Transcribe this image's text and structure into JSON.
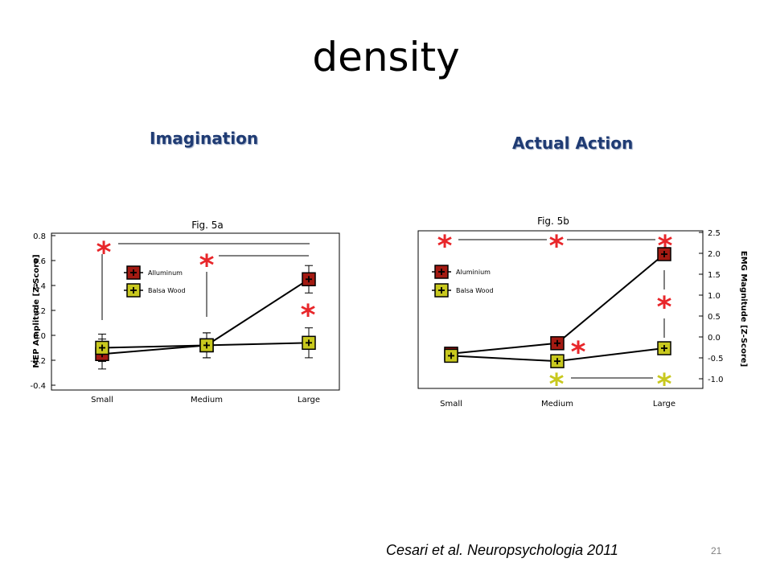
{
  "slide": {
    "title": "density",
    "left_heading": "Imagination",
    "right_heading": "Actual Action",
    "citation": "Cesari et al. Neuropsychologia 2011",
    "page_number": "21"
  },
  "colors": {
    "aluminum": "#a31a12",
    "balsa": "#c8c81e",
    "significance_red": "#e8262a",
    "significance_yellow": "#c8c81e",
    "heading": "#1f3b73"
  },
  "chart_data": [
    {
      "type": "line",
      "title": "Fig. 5a",
      "xlabel": "",
      "ylabel": "MEP Amplitude [Z-Score]",
      "categories": [
        "Small",
        "Medium",
        "Large"
      ],
      "ylim": [
        -0.4,
        0.8
      ],
      "yticks": [
        "0.8",
        "0.6",
        "0.4",
        "0.2",
        "0.0",
        "-0.2",
        "-0.4"
      ],
      "ytick_values": [
        0.8,
        0.6,
        0.4,
        0.2,
        0.0,
        -0.2,
        -0.4
      ],
      "legend_position": "top-left",
      "series": [
        {
          "name": "Alluminum",
          "values": [
            -0.15,
            -0.08,
            0.45
          ],
          "errors": [
            0.12,
            0.1,
            0.11
          ],
          "color": "#a31a12"
        },
        {
          "name": "Balsa Wood",
          "values": [
            -0.1,
            -0.08,
            -0.06
          ],
          "errors": [
            0.11,
            0.1,
            0.12
          ],
          "color": "#c8c81e"
        }
      ],
      "significance_markers": [
        "*",
        "*",
        "*"
      ]
    },
    {
      "type": "line",
      "title": "Fig. 5b",
      "xlabel": "",
      "ylabel": "EMG Magnitude [Z-Score]",
      "categories": [
        "Small",
        "Medium",
        "Large"
      ],
      "ylim": [
        -1.2,
        2.6
      ],
      "yticks": [
        "2.5",
        "2.0",
        "1.5",
        "1.0",
        "0.5",
        "0.0",
        "-0.5",
        "-1.0"
      ],
      "ytick_values": [
        2.5,
        2.0,
        1.5,
        1.0,
        0.5,
        0.0,
        -0.5,
        -1.0
      ],
      "legend_position": "top-left",
      "series": [
        {
          "name": "Aluminium",
          "values": [
            -0.4,
            -0.15,
            1.98
          ],
          "color": "#a31a12"
        },
        {
          "name": "Balsa Wood",
          "values": [
            -0.45,
            -0.58,
            -0.27
          ],
          "color": "#c8c81e"
        }
      ],
      "significance_markers": [
        "*",
        "*",
        "*",
        "*",
        "*",
        "*",
        "*"
      ]
    }
  ]
}
